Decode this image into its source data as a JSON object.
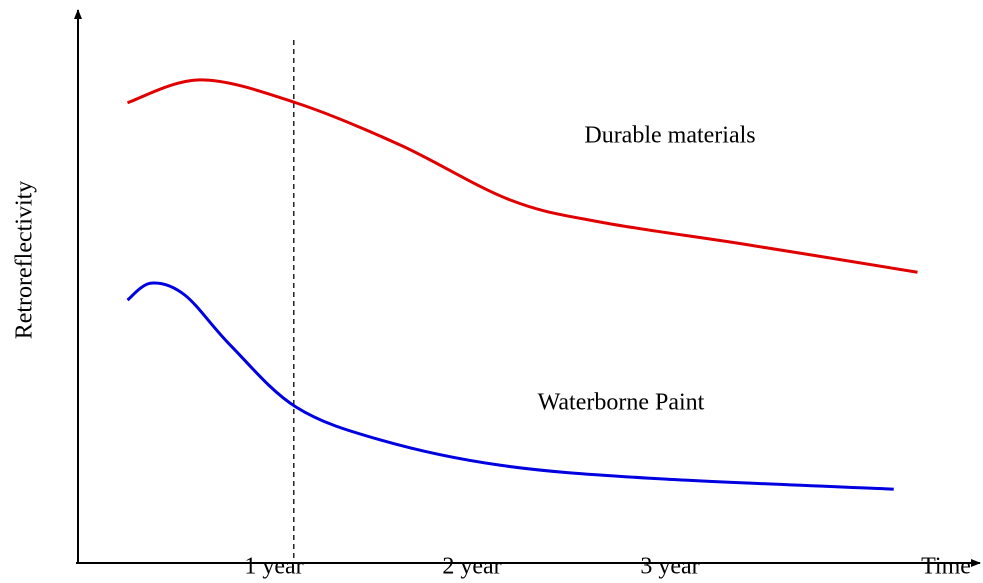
{
  "chart_data": {
    "type": "line",
    "ylabel": "Retroreflectivity",
    "xlabel": "Time",
    "xlim": [
      0,
      4.55
    ],
    "ylim": [
      0,
      100
    ],
    "xticks": [
      {
        "value": 1,
        "label": "1 year"
      },
      {
        "value": 2,
        "label": "2 year"
      },
      {
        "value": 3,
        "label": "3 year"
      }
    ],
    "vline": 1.1,
    "series": [
      {
        "name": "Durable materials",
        "color": "#e00000",
        "x": [
          0.26,
          0.63,
          1.11,
          1.64,
          2.19,
          2.65,
          3.4,
          4.25
        ],
        "values": [
          83.9,
          88.1,
          83.9,
          76.1,
          66.1,
          62.0,
          57.8,
          52.8
        ]
      },
      {
        "name": "Waterborne Paint",
        "color": "#0000e0",
        "x": [
          0.26,
          0.38,
          0.55,
          0.78,
          1.11,
          1.54,
          2.14,
          2.9,
          4.13
        ],
        "values": [
          47.7,
          50.8,
          48.6,
          39.4,
          28.1,
          22.0,
          17.4,
          15.0,
          13.0
        ]
      }
    ]
  }
}
